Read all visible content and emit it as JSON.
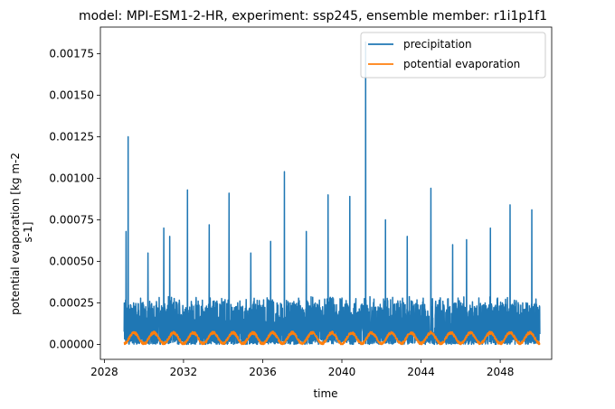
{
  "chart_data": {
    "type": "line",
    "title": "model: MPI-ESM1-2-HR, experiment: ssp245, ensemble member: r1i1p1f1",
    "xlabel": "time",
    "ylabel_lines": [
      "potential evaporation [kg m-2",
      "s-1]"
    ],
    "xlim": [
      2027.8,
      2050.6
    ],
    "ylim": [
      -9e-05,
      0.00191
    ],
    "x_ticks": [
      2028,
      2032,
      2036,
      2040,
      2044,
      2048
    ],
    "x_tick_labels": [
      "2028",
      "2032",
      "2036",
      "2040",
      "2044",
      "2048"
    ],
    "y_ticks": [
      0,
      0.00025,
      0.0005,
      0.00075,
      0.001,
      0.00125,
      0.0015,
      0.00175
    ],
    "y_tick_labels": [
      "0.00000",
      "0.00025",
      "0.00050",
      "0.00075",
      "0.00100",
      "0.00125",
      "0.00150",
      "0.00175"
    ],
    "grid": false,
    "legend_position": "top-right",
    "series": [
      {
        "name": "precipitation",
        "color": "#1f77b4",
        "x_start": 2029.0,
        "x_end": 2050.0,
        "typical_range": [
          0,
          0.00025
        ],
        "peaks": [
          {
            "x": 2029.2,
            "y": 0.00125
          },
          {
            "x": 2029.1,
            "y": 0.00068
          },
          {
            "x": 2030.2,
            "y": 0.00055
          },
          {
            "x": 2031.0,
            "y": 0.0007
          },
          {
            "x": 2031.3,
            "y": 0.00065
          },
          {
            "x": 2032.2,
            "y": 0.00093
          },
          {
            "x": 2033.3,
            "y": 0.00072
          },
          {
            "x": 2034.3,
            "y": 0.00091
          },
          {
            "x": 2035.4,
            "y": 0.00055
          },
          {
            "x": 2036.4,
            "y": 0.00062
          },
          {
            "x": 2037.1,
            "y": 0.00104
          },
          {
            "x": 2038.2,
            "y": 0.00068
          },
          {
            "x": 2039.3,
            "y": 0.0009
          },
          {
            "x": 2040.4,
            "y": 0.00089
          },
          {
            "x": 2041.2,
            "y": 0.00182
          },
          {
            "x": 2042.2,
            "y": 0.00075
          },
          {
            "x": 2043.3,
            "y": 0.00065
          },
          {
            "x": 2044.5,
            "y": 0.00094
          },
          {
            "x": 2045.6,
            "y": 0.0006
          },
          {
            "x": 2046.3,
            "y": 0.00063
          },
          {
            "x": 2047.5,
            "y": 0.0007
          },
          {
            "x": 2048.5,
            "y": 0.00084
          },
          {
            "x": 2049.6,
            "y": 0.00081
          }
        ]
      },
      {
        "name": "potential evaporation",
        "color": "#ff7f0e",
        "x_start": 2029.0,
        "x_end": 2050.0,
        "annual_cycle_range": [
          5e-06,
          7e-05
        ]
      }
    ]
  }
}
